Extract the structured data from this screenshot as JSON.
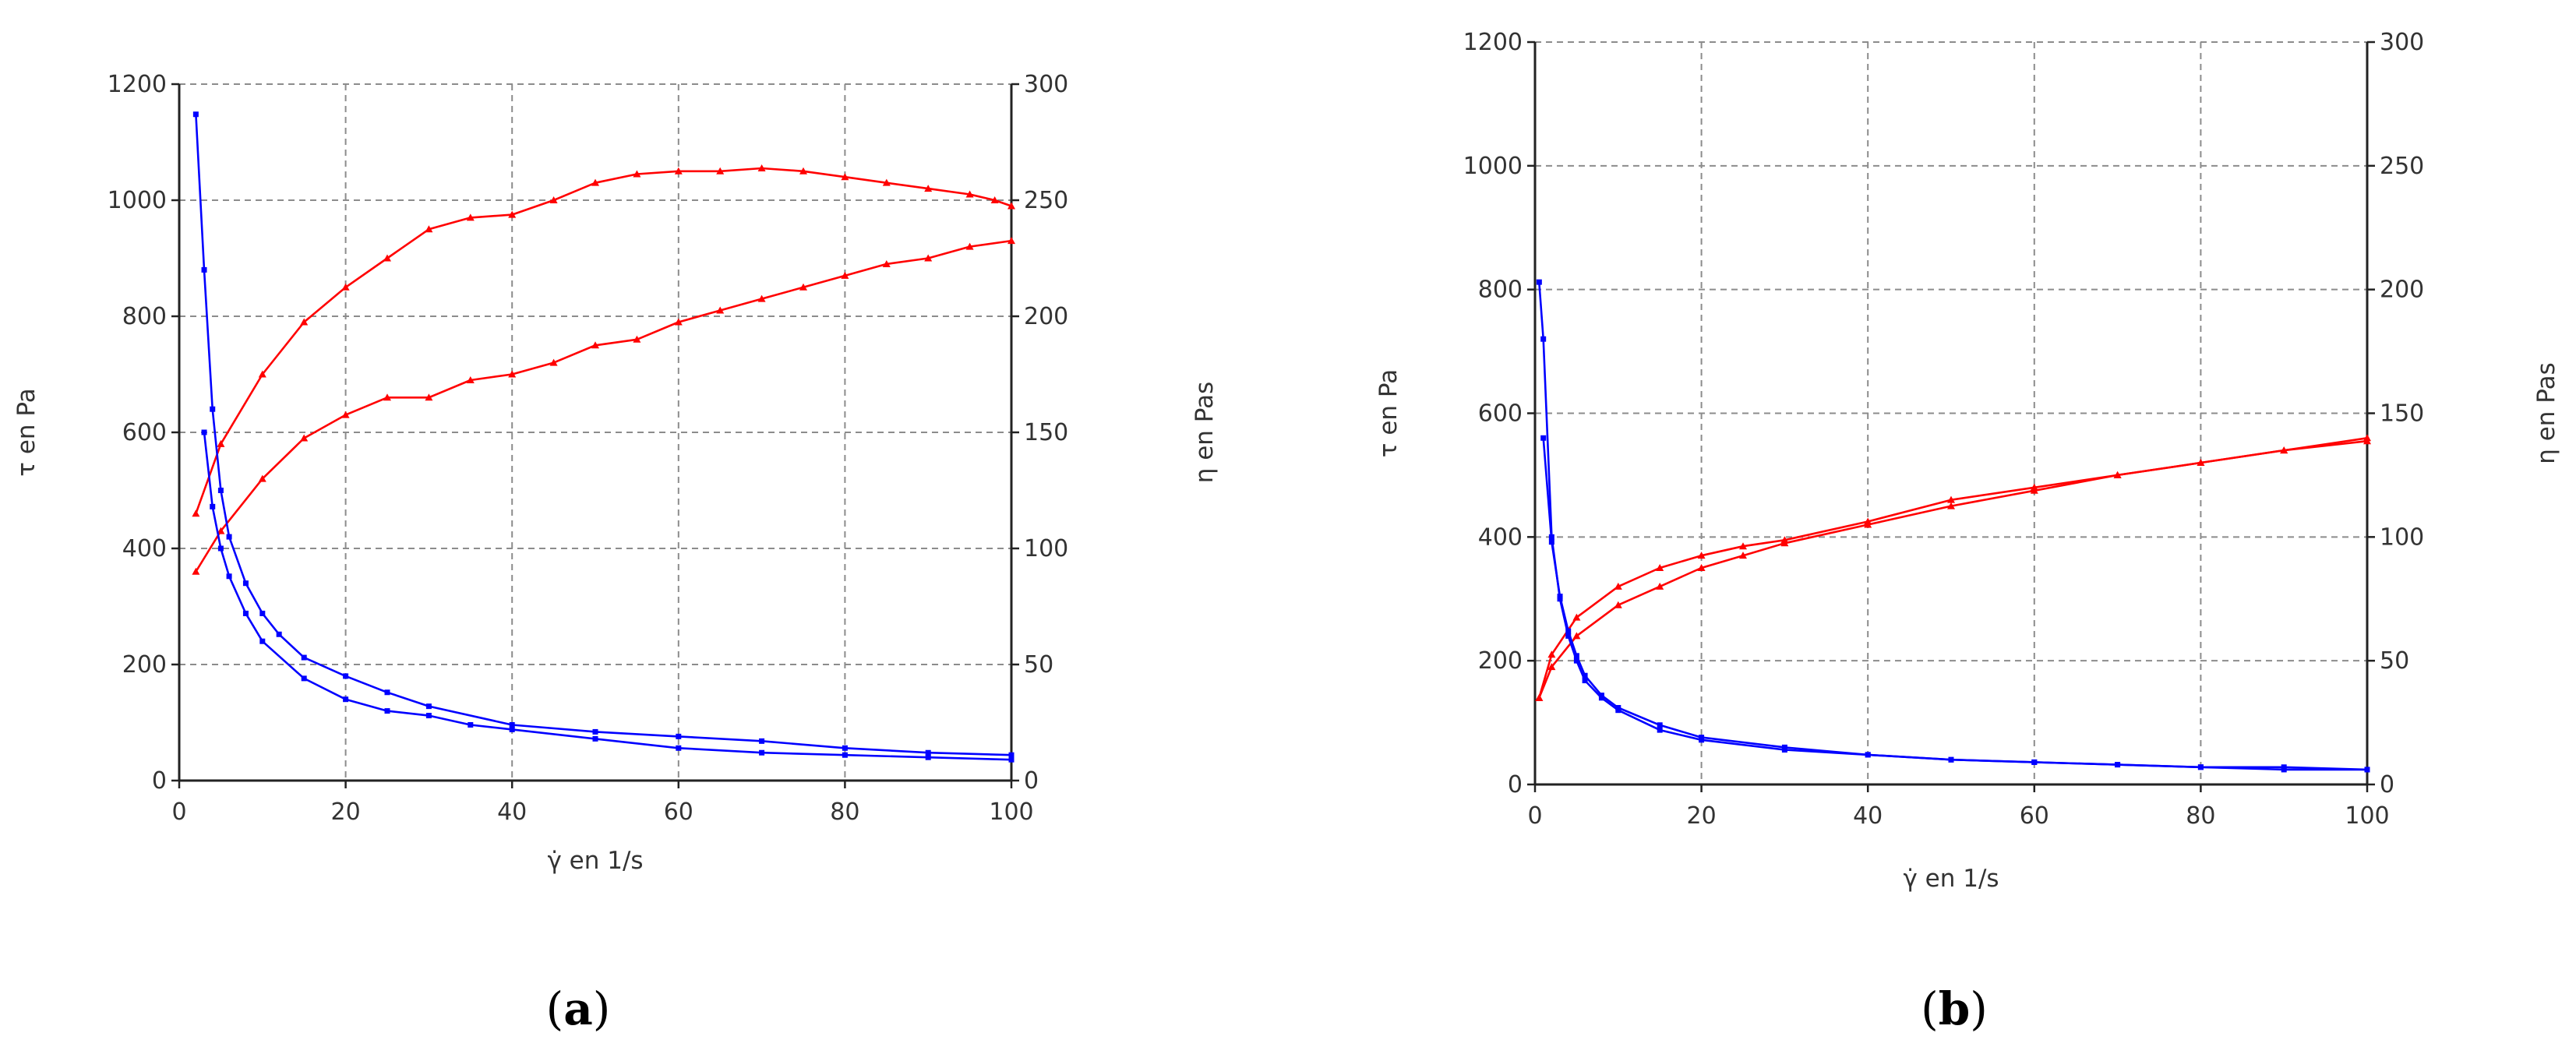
{
  "colors": {
    "tau": "#ff0000",
    "eta": "#0000ff",
    "grid": "#8c8c8c"
  },
  "chart_data": [
    {
      "type": "line",
      "caption_open": "(",
      "caption_letter": "a",
      "caption_close": ")",
      "xlabel": "γ̇ en 1/s",
      "ylabel_left": "τ en Pa",
      "ylabel_right": "η en Pas",
      "xlim": [
        0,
        100
      ],
      "ylim_left": [
        0,
        1200
      ],
      "ylim_right": [
        0,
        300
      ],
      "x_ticks": [
        0,
        20,
        40,
        60,
        80,
        100
      ],
      "y_left_ticks": [
        0,
        200,
        400,
        600,
        800,
        1000,
        1200
      ],
      "y_right_ticks": [
        0,
        50,
        100,
        150,
        200,
        250,
        300
      ],
      "grid": true,
      "series": [
        {
          "axis": "left",
          "color": "#ff0000",
          "marker": "triangle",
          "x": [
            2,
            5,
            10,
            15,
            20,
            25,
            30,
            35,
            40,
            45,
            50,
            55,
            60,
            65,
            70,
            75,
            80,
            85,
            90,
            95,
            98,
            100
          ],
          "y": [
            460,
            580,
            700,
            790,
            850,
            900,
            950,
            970,
            975,
            1000,
            1030,
            1045,
            1050,
            1050,
            1055,
            1050,
            1040,
            1030,
            1020,
            1010,
            1000,
            990
          ]
        },
        {
          "axis": "left",
          "color": "#ff0000",
          "marker": "triangle",
          "x": [
            2,
            5,
            10,
            15,
            20,
            25,
            30,
            35,
            40,
            45,
            50,
            55,
            60,
            65,
            70,
            75,
            80,
            85,
            90,
            95,
            100
          ],
          "y": [
            360,
            430,
            520,
            590,
            630,
            660,
            660,
            690,
            700,
            720,
            750,
            760,
            790,
            810,
            830,
            850,
            870,
            890,
            900,
            920,
            930
          ]
        },
        {
          "axis": "right",
          "color": "#0000ff",
          "marker": "square",
          "x": [
            2,
            3,
            4,
            5,
            6,
            8,
            10,
            12,
            15,
            20,
            25,
            30,
            40,
            50,
            60,
            70,
            80,
            90,
            100
          ],
          "y": [
            287,
            220,
            160,
            125,
            105,
            85,
            72,
            63,
            53,
            45,
            38,
            32,
            24,
            21,
            19,
            17,
            14,
            12,
            11
          ]
        },
        {
          "axis": "right",
          "color": "#0000ff",
          "marker": "square",
          "x": [
            3,
            4,
            5,
            6,
            8,
            10,
            15,
            20,
            25,
            30,
            35,
            40,
            50,
            60,
            70,
            80,
            90,
            100
          ],
          "y": [
            150,
            118,
            100,
            88,
            72,
            60,
            44,
            35,
            30,
            28,
            24,
            22,
            18,
            14,
            12,
            11,
            10,
            9
          ]
        }
      ]
    },
    {
      "type": "line",
      "caption_open": "(",
      "caption_letter": "b",
      "caption_close": ")",
      "xlabel": "γ̇ en 1/s",
      "ylabel_left": "τ en Pa",
      "ylabel_right": "η en Pas",
      "xlim": [
        0,
        100
      ],
      "ylim_left": [
        0,
        1200
      ],
      "ylim_right": [
        0,
        300
      ],
      "x_ticks": [
        0,
        20,
        40,
        60,
        80,
        100
      ],
      "y_left_ticks": [
        0,
        200,
        400,
        600,
        800,
        1000,
        1200
      ],
      "y_right_ticks": [
        0,
        50,
        100,
        150,
        200,
        250,
        300
      ],
      "grid": true,
      "series": [
        {
          "axis": "left",
          "color": "#ff0000",
          "marker": "triangle",
          "x": [
            0.5,
            2,
            5,
            10,
            15,
            20,
            25,
            30,
            40,
            50,
            60,
            70,
            80,
            90,
            100
          ],
          "y": [
            140,
            210,
            270,
            320,
            350,
            370,
            385,
            395,
            425,
            460,
            480,
            500,
            520,
            540,
            560
          ]
        },
        {
          "axis": "left",
          "color": "#ff0000",
          "marker": "triangle",
          "x": [
            0.5,
            2,
            5,
            10,
            15,
            20,
            25,
            30,
            40,
            50,
            60,
            70,
            80,
            90,
            100
          ],
          "y": [
            140,
            190,
            240,
            290,
            320,
            350,
            370,
            390,
            420,
            450,
            475,
            500,
            520,
            540,
            555
          ]
        },
        {
          "axis": "right",
          "color": "#0000ff",
          "marker": "square",
          "x": [
            0.5,
            1,
            2,
            3,
            4,
            5,
            6,
            8,
            10,
            15,
            20,
            30,
            40,
            50,
            60,
            70,
            80,
            90,
            100
          ],
          "y": [
            203,
            180,
            100,
            75,
            60,
            50,
            42,
            35,
            30,
            22,
            18,
            14,
            12,
            10,
            9,
            8,
            7,
            7,
            6
          ]
        },
        {
          "axis": "right",
          "color": "#0000ff",
          "marker": "square",
          "x": [
            1,
            2,
            3,
            4,
            5,
            6,
            8,
            10,
            15,
            20,
            30,
            40,
            50,
            60,
            70,
            80,
            90,
            100
          ],
          "y": [
            140,
            98,
            76,
            62,
            52,
            44,
            36,
            31,
            24,
            19,
            15,
            12,
            10,
            9,
            8,
            7,
            6,
            6
          ]
        }
      ]
    }
  ]
}
